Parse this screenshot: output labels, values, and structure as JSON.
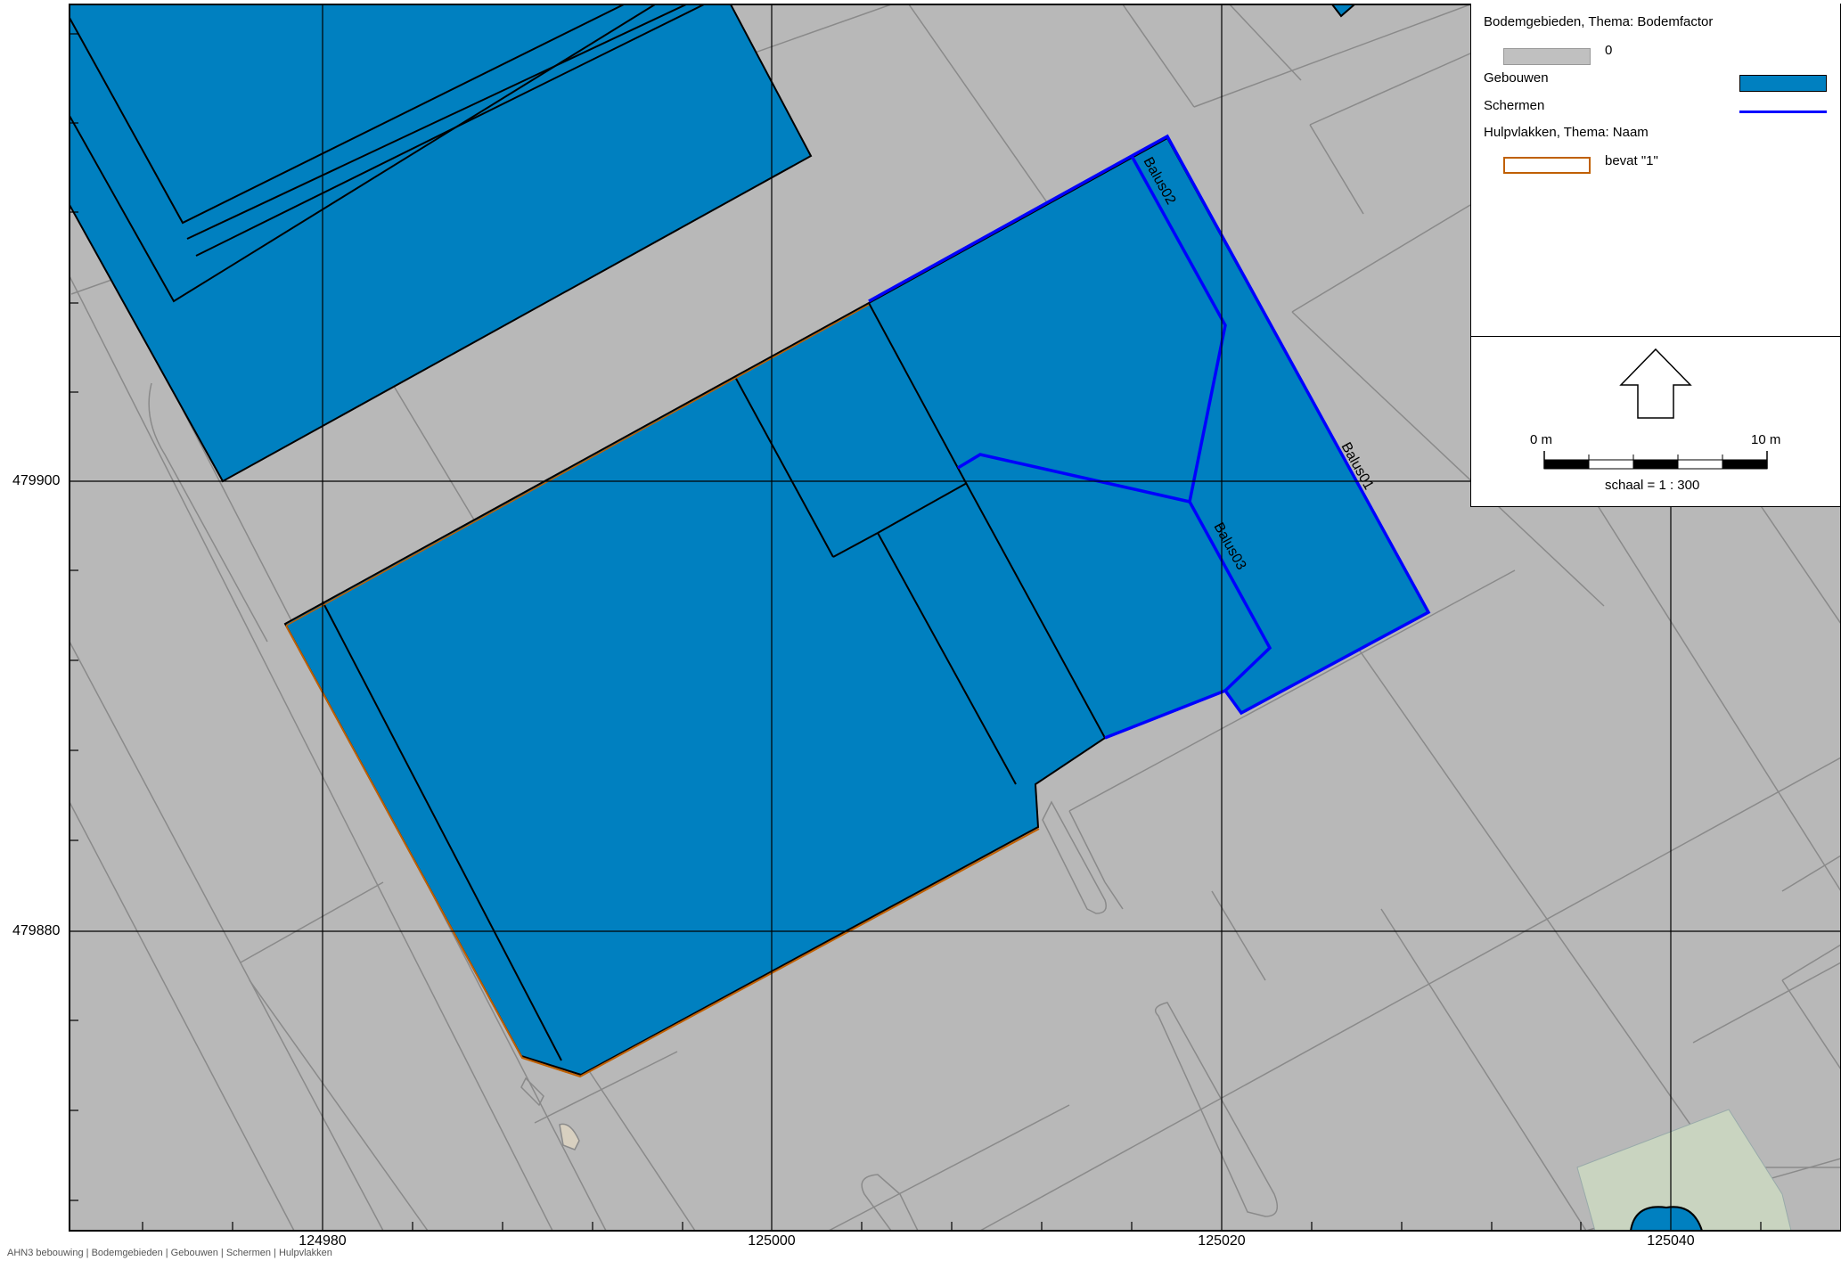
{
  "map": {
    "colors": {
      "background": "#b8b8b8",
      "building_fill": "#0080c0",
      "screen_line": "#0000ff",
      "hulpvlak_line": "#c06000",
      "parcel_line": "#8a8a8a",
      "grid_line": "#000000"
    },
    "axes": {
      "x_ticks": [
        "124980",
        "125000",
        "125020",
        "125040"
      ],
      "y_ticks": [
        "479900",
        "479880"
      ]
    },
    "screen_labels": [
      "Balus01",
      "Balus02",
      "Balus03"
    ]
  },
  "legend": {
    "bodem_title": "Bodemgebieden, Thema: Bodemfactor",
    "bodem_value": "0",
    "gebouwen_label": "Gebouwen",
    "schermen_label": "Schermen",
    "hulpvlakken_title": "Hulpvlakken, Thema: Naam",
    "hulpvlakken_value": "bevat \"1\"",
    "swatch_colors": {
      "bodem": "#c0c0c0",
      "gebouwen": "#0080c0",
      "schermen": "#0000ff",
      "hulpvlakken": "#c06000"
    }
  },
  "north": {
    "icon": "north-arrow-icon",
    "scale_start": "0 m",
    "scale_end": "10 m",
    "scale_text": "schaal = 1 : 300"
  },
  "footer": {
    "text": "AHN3 bebouwing | Bodemgebieden | Gebouwen | Schermen | Hulpvlakken"
  }
}
